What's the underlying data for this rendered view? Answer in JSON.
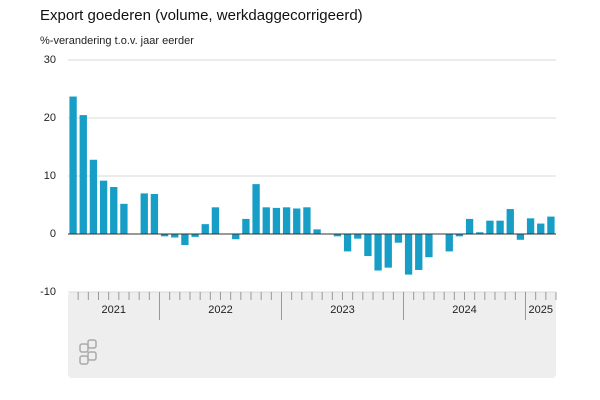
{
  "chart_data": {
    "type": "bar",
    "title": "Export goederen (volume, werkdaggecorrigeerd)",
    "subtitle": "%-verandering t.o.v. jaar eerder",
    "categories": [
      null,
      null,
      null,
      null,
      null,
      null,
      null,
      null,
      null,
      null,
      null,
      null,
      null,
      null,
      null,
      null,
      null,
      null,
      null,
      null,
      null,
      null,
      null,
      null,
      null,
      null,
      null,
      null,
      null,
      null,
      null,
      null,
      null,
      null,
      null,
      null,
      null,
      null,
      null,
      null,
      null,
      null,
      null,
      null,
      null,
      null,
      null,
      null
    ],
    "values": [
      23.7,
      20.5,
      12.8,
      9.2,
      8.1,
      5.2,
      0,
      7.0,
      6.9,
      -0.4,
      -0.6,
      -1.9,
      -0.5,
      1.7,
      4.6,
      0,
      -0.9,
      2.6,
      8.6,
      4.6,
      4.5,
      4.6,
      4.4,
      4.6,
      0.8,
      0,
      -0.4,
      -3.0,
      -0.8,
      -3.8,
      -6.3,
      -5.8,
      -1.5,
      -7.0,
      -6.2,
      -4.0,
      0,
      -3.0,
      -0.4,
      2.6,
      0.3,
      2.3,
      2.3,
      4.3,
      -1.0,
      2.7,
      1.8,
      3.0
    ],
    "year_labels": [
      "2021",
      "2022",
      "2023",
      "2024",
      "2025"
    ],
    "year_months": [
      9,
      12,
      12,
      12,
      3
    ],
    "color": "#169ec7",
    "ylim": [
      -10,
      30
    ],
    "yticks": [
      -10,
      0,
      10,
      20,
      30
    ],
    "grid": true
  }
}
